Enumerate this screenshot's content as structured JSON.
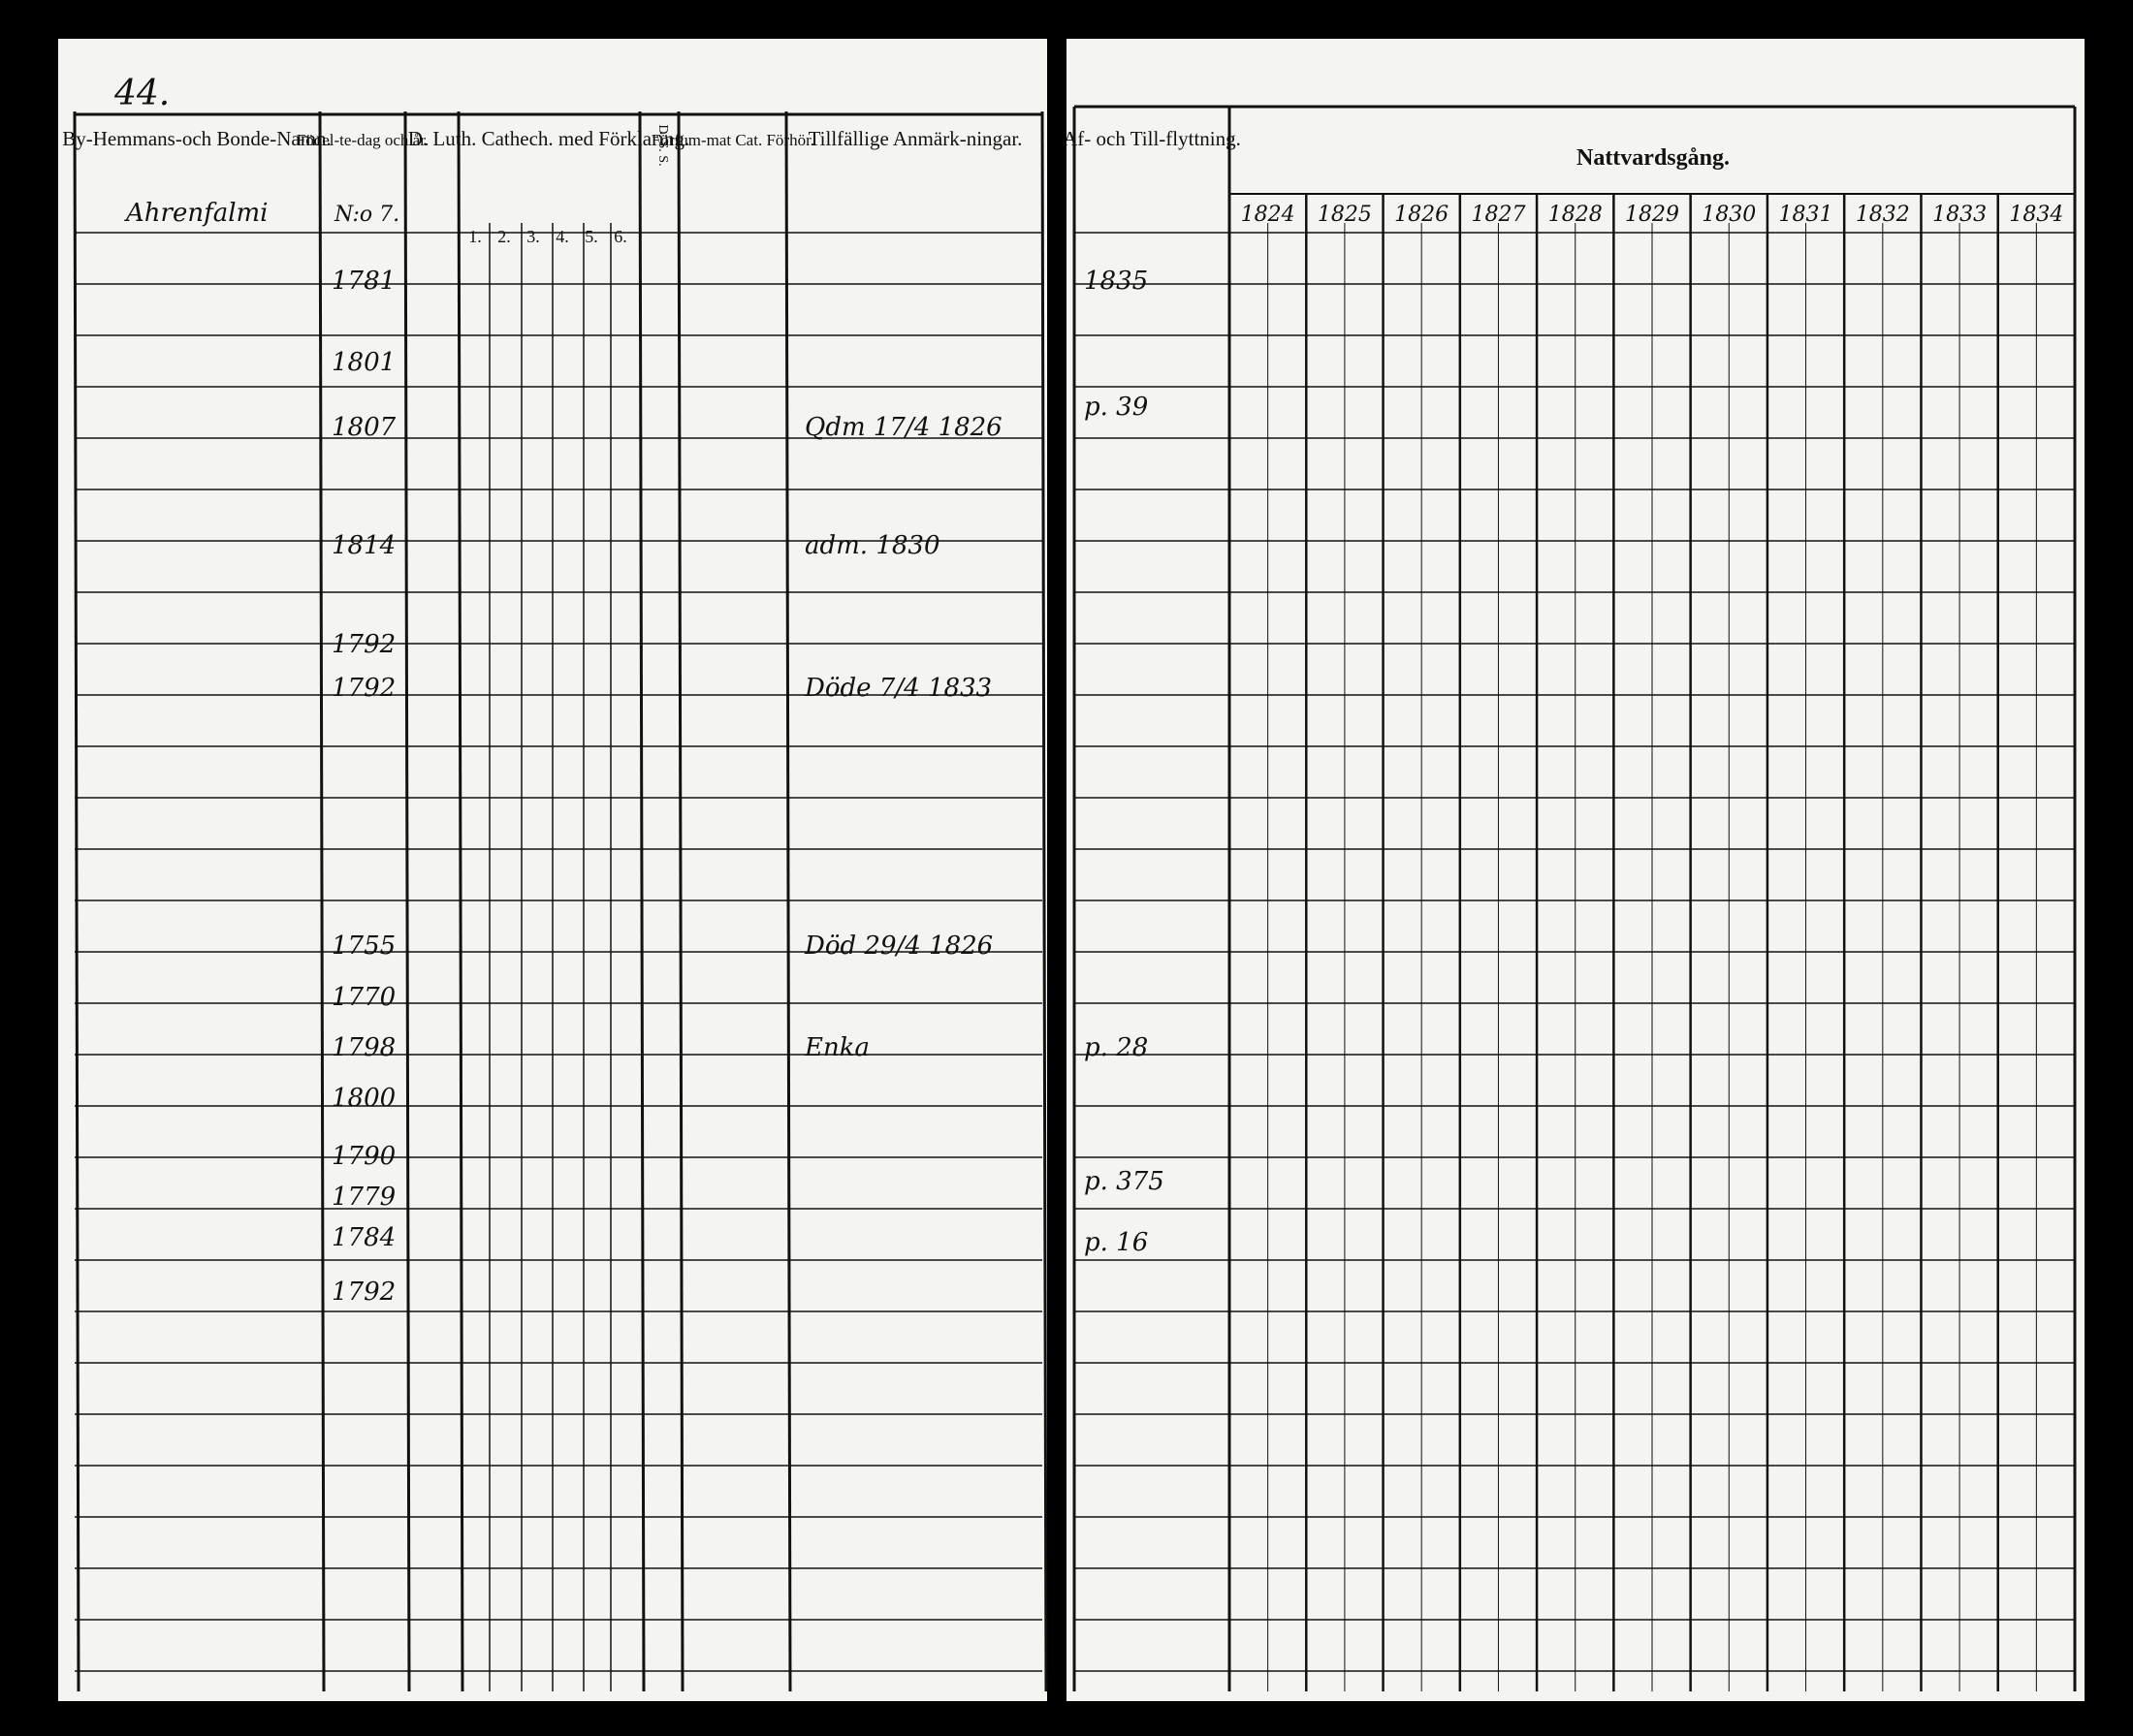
{
  "left_page": {
    "page_number": "44.",
    "headers": [
      "By-Hemmans-och Bonde-Namn.",
      "Födel-te-dag och år.",
      "D. Luth. Cathech. med Förklaring.",
      "D. S. S.",
      "Förfum-mat Cat. Förhör.",
      "Tillfällige Anmärk-ningar."
    ],
    "catechism_numbers": [
      "1.",
      "2.",
      "3.",
      "4.",
      "5.",
      "6."
    ],
    "place": "Ahrenfalmi",
    "house_number": "N:o 7.",
    "rows": [
      {
        "birth_year": "1781"
      },
      {
        "birth_year": "1801"
      },
      {
        "birth_year": "1807",
        "remark": "Qdm 17/4 1826"
      },
      {
        "birth_year": "1814",
        "remark": "adm. 1830"
      },
      {
        "birth_year": "1792"
      },
      {
        "birth_year": "1792",
        "remark": "Döde 7/4 1833"
      },
      {
        "birth_year": "1755",
        "remark": "Död 29/4 1826"
      },
      {
        "birth_year": "1770"
      },
      {
        "birth_year": "1798",
        "remark": "Enka"
      },
      {
        "birth_year": "1800"
      },
      {
        "birth_year": "1790"
      },
      {
        "birth_year": "1779"
      },
      {
        "birth_year": "1784"
      },
      {
        "birth_year": "1792"
      }
    ]
  },
  "right_page": {
    "headers": [
      "Af- och Till-flyttning.",
      "Nattvardsgång."
    ],
    "years": [
      "1824",
      "1825",
      "1826",
      "1827",
      "1828",
      "1829",
      "1830",
      "1831",
      "1832",
      "1833",
      "1834"
    ],
    "moving_notes": [
      "1835",
      "p. 39",
      "p. 28",
      "p. 375",
      "p. 16"
    ]
  }
}
